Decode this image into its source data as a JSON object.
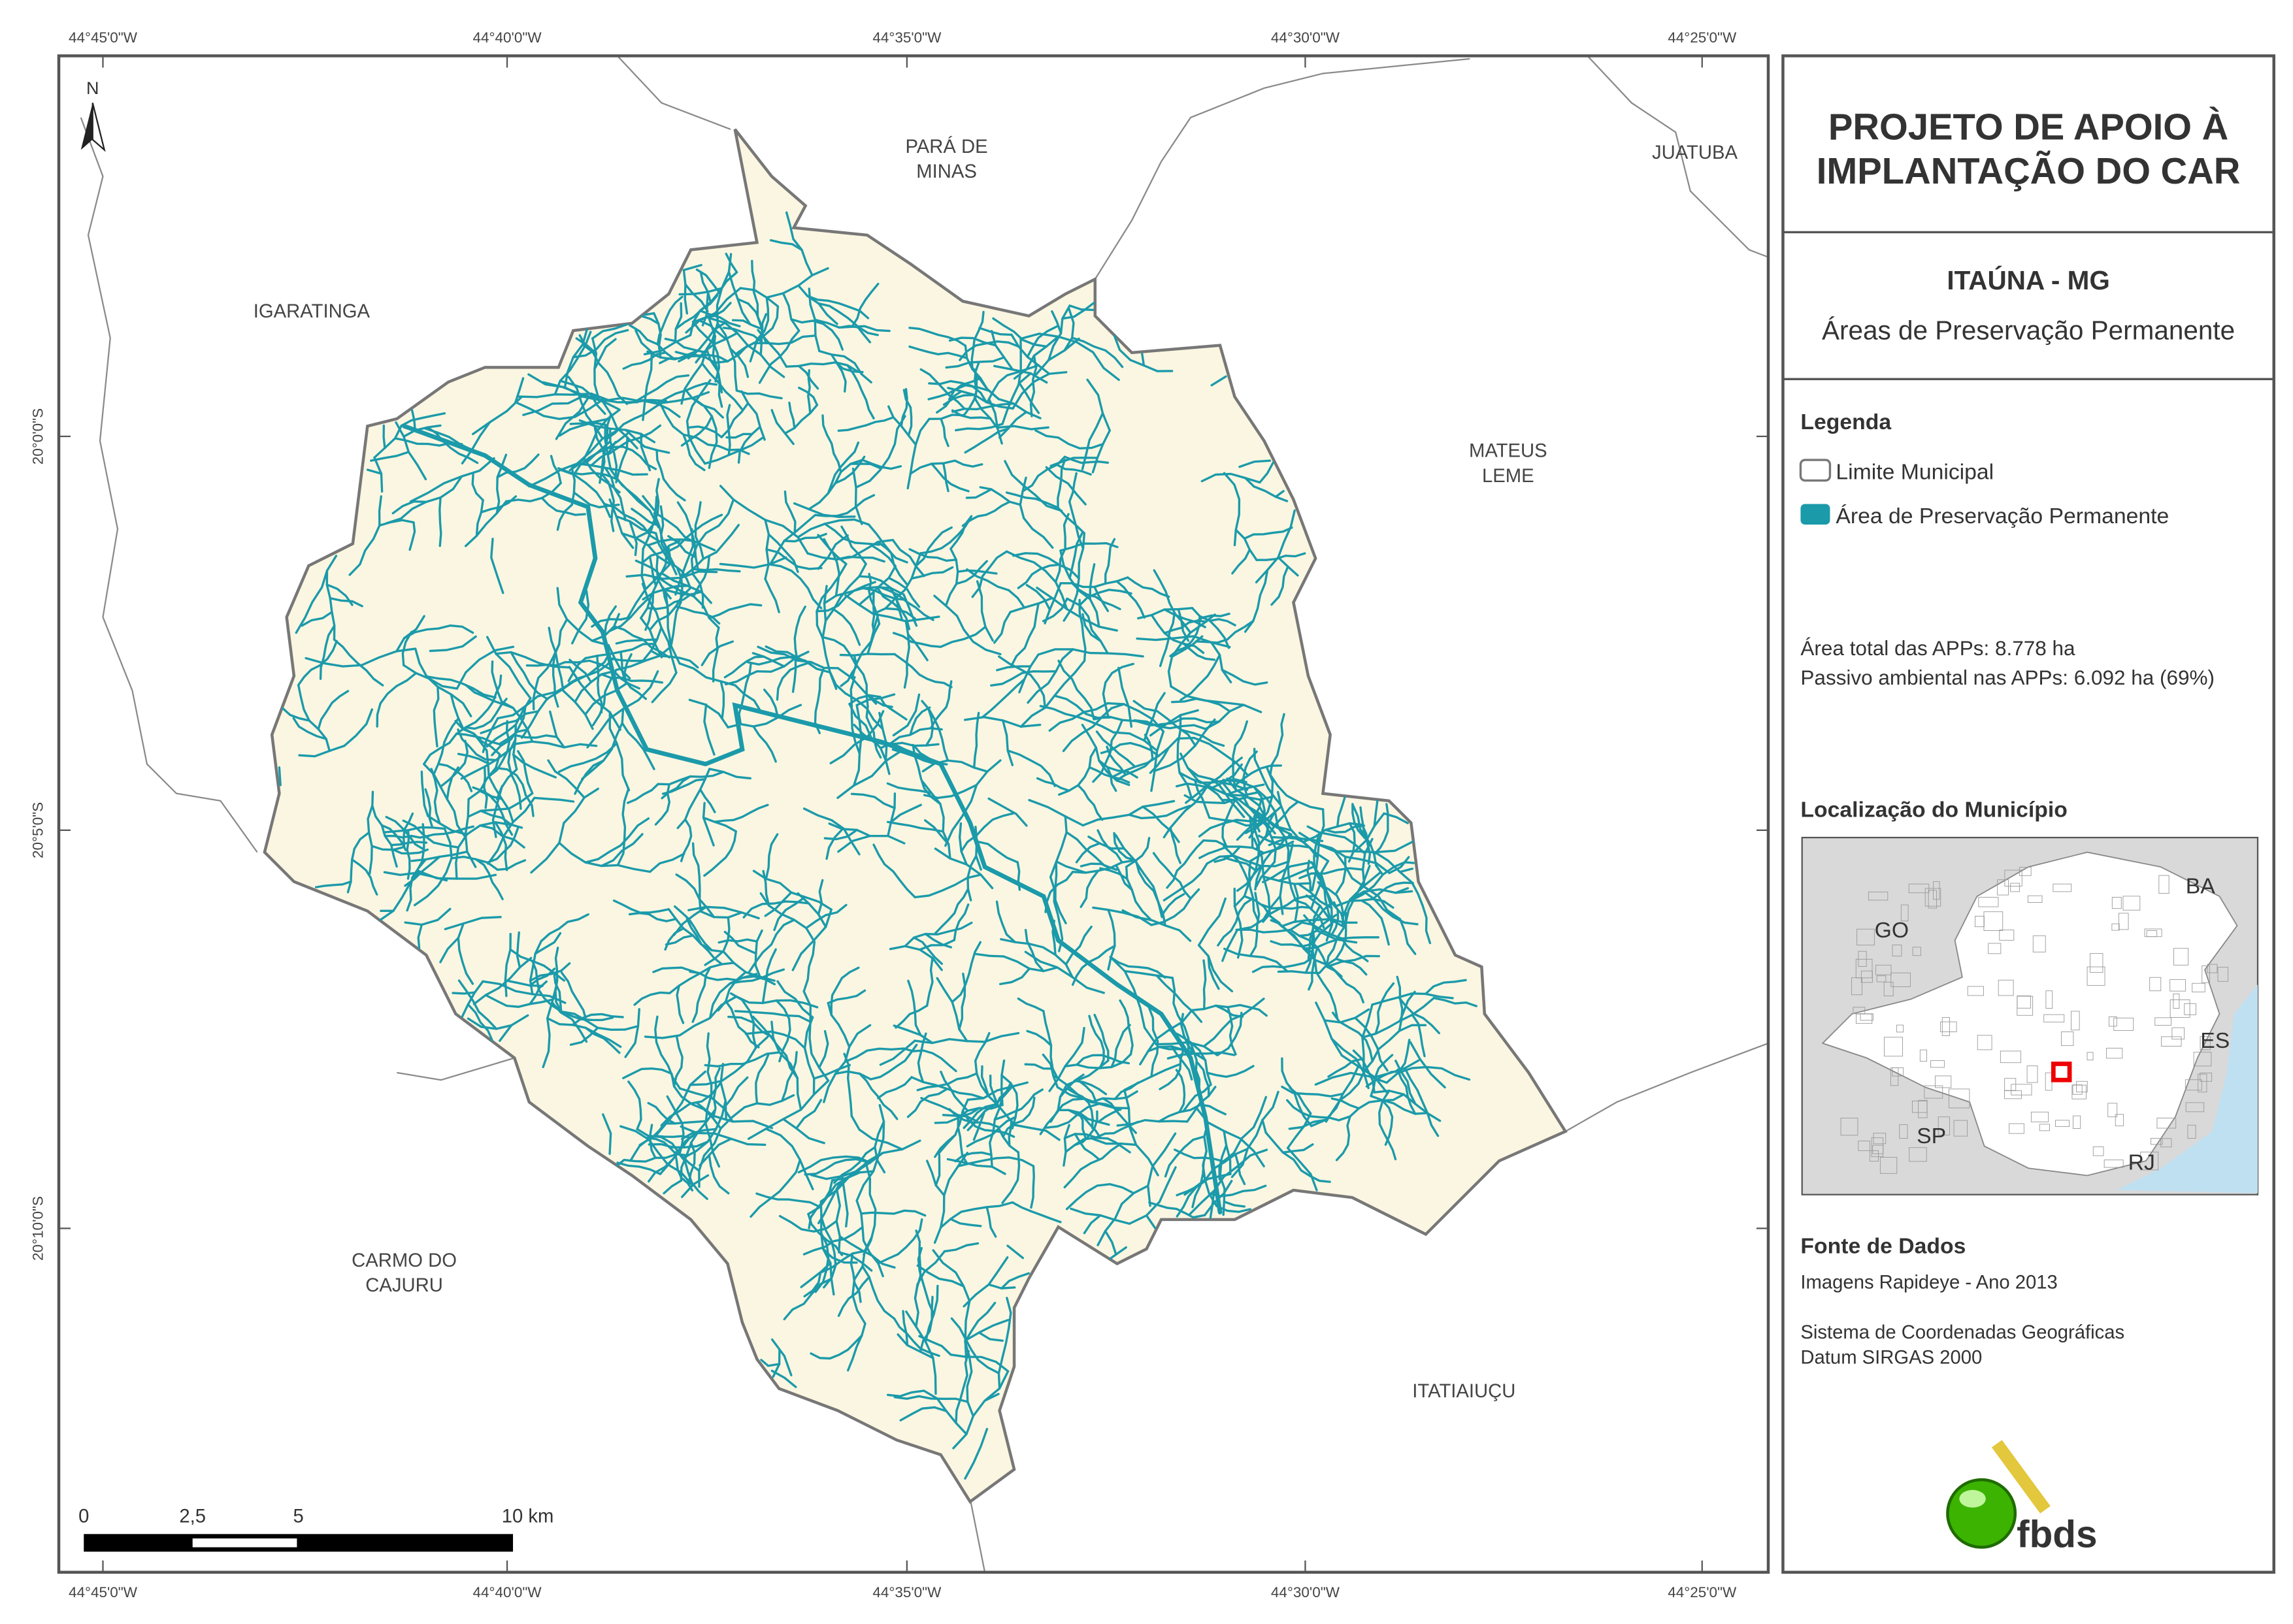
{
  "map": {
    "longitudes": [
      "44°45'0\"W",
      "44°40'0\"W",
      "44°35'0\"W",
      "44°30'0\"W",
      "44°25'0\"W"
    ],
    "latitudes": [
      "20°0'0\"S",
      "20°5'0\"S",
      "20°10'0\"S"
    ],
    "places": [
      {
        "lines": [
          "PARÁ DE",
          "MINAS"
        ]
      },
      {
        "lines": [
          "JUATUBA"
        ]
      },
      {
        "lines": [
          "IGARATINGA"
        ]
      },
      {
        "lines": [
          "MATEUS",
          "LEME"
        ]
      },
      {
        "lines": [
          "CARMO DO",
          "CAJURU"
        ]
      },
      {
        "lines": [
          "ITATIAIUÇU"
        ]
      }
    ],
    "north": "N",
    "scale_bar": [
      "0",
      "2,5",
      "5",
      "10 km"
    ]
  },
  "panel": {
    "title": [
      "PROJETO DE APOIO À",
      "IMPLANTAÇÃO DO CAR"
    ],
    "municipality": "ITAÚNA - MG",
    "theme": "Áreas de Preservação Permanente",
    "legend_title": "Legenda",
    "legend": [
      "Limite Municipal",
      "Área de Preservação Permanente"
    ],
    "stats": [
      "Área total das APPs: 8.778 ha",
      "Passivo ambiental nas APPs: 6.092 ha (69%)"
    ],
    "location_title": "Localização do Município",
    "inset_labels": [
      "BA",
      "GO",
      "ES",
      "SP",
      "RJ"
    ],
    "sources_title": "Fonte de Dados",
    "sources": [
      "Imagens Rapideye - Ano 2013",
      "Sistema de Coordenadas Geográficas",
      "Datum SIRGAS 2000"
    ],
    "logo": "fbds"
  }
}
